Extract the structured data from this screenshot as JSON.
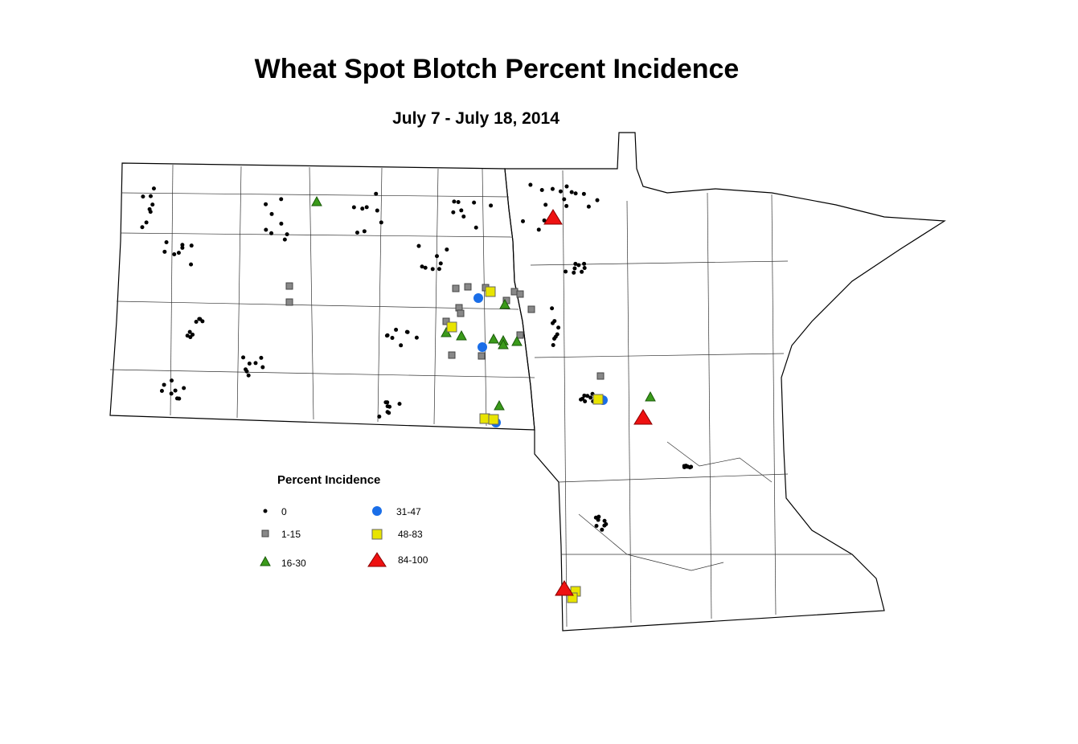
{
  "header": {
    "title": "Wheat Spot Blotch Percent Incidence",
    "subtitle": "July 7 - July 18, 2014"
  },
  "legend": {
    "title": "Percent Incidence",
    "items": [
      {
        "label": "0"
      },
      {
        "label": "1-15"
      },
      {
        "label": "16-30"
      },
      {
        "label": "31-47"
      },
      {
        "label": "48-83"
      },
      {
        "label": "84-100"
      }
    ]
  }
}
